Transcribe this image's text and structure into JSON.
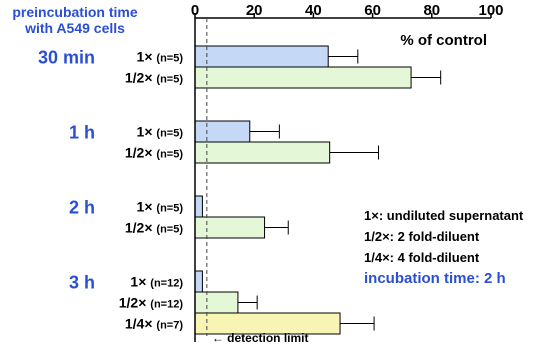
{
  "header": {
    "line1": "preincubation time",
    "line2": "with A549 cells"
  },
  "chart_data": {
    "type": "bar",
    "orientation": "horizontal",
    "xlabel": "% of control",
    "xlim": [
      0,
      100
    ],
    "xticks": [
      "0",
      "20",
      "40",
      "60",
      "80",
      "100"
    ],
    "grid": false,
    "groups": [
      {
        "label": "30 min",
        "bars": [
          {
            "label": "1×",
            "n": "(n=5)",
            "value": 45,
            "error": 10,
            "dilution": "1x"
          },
          {
            "label": "1/2×",
            "n": "(n=5)",
            "value": 73,
            "error": 10,
            "dilution": "1/2x"
          }
        ]
      },
      {
        "label": "1 h",
        "bars": [
          {
            "label": "1×",
            "n": "(n=5)",
            "value": 18.5,
            "error": 10,
            "dilution": "1x"
          },
          {
            "label": "1/2×",
            "n": "(n=5)",
            "value": 45.5,
            "error": 16.5,
            "dilution": "1/2x"
          }
        ]
      },
      {
        "label": "2 h",
        "bars": [
          {
            "label": "1×",
            "n": "(n=5)",
            "value": 2.5,
            "error": 0,
            "dilution": "1x"
          },
          {
            "label": "1/2×",
            "n": "(n=5)",
            "value": 23.5,
            "error": 8,
            "dilution": "1/2x"
          }
        ]
      },
      {
        "label": "3 h",
        "bars": [
          {
            "label": "1×",
            "n": "(n=12)",
            "value": 2.5,
            "error": 0,
            "dilution": "1x"
          },
          {
            "label": "1/2×",
            "n": "(n=12)",
            "value": 14.5,
            "error": 6.5,
            "dilution": "1/2x"
          },
          {
            "label": "1/4×",
            "n": "(n=7)",
            "value": 49,
            "error": 11.5,
            "dilution": "1/4x"
          }
        ]
      }
    ],
    "detection_limit": {
      "value": 4,
      "label": "← detection limit"
    },
    "legend": [
      {
        "text": "1×: undiluted supernatant",
        "highlight": false
      },
      {
        "text": "1/2×: 2 fold-diluent",
        "highlight": false
      },
      {
        "text": "1/4×: 4 fold-diluent",
        "highlight": false
      },
      {
        "text": "incubation time: 2 h",
        "highlight": true
      }
    ],
    "colors": {
      "1x": "#c5d8f6",
      "1/2x": "#e4f7d6",
      "1/4x": "#f8f4b4",
      "group_label": "#2a4fd6",
      "highlight": "#2a4fd6"
    }
  }
}
